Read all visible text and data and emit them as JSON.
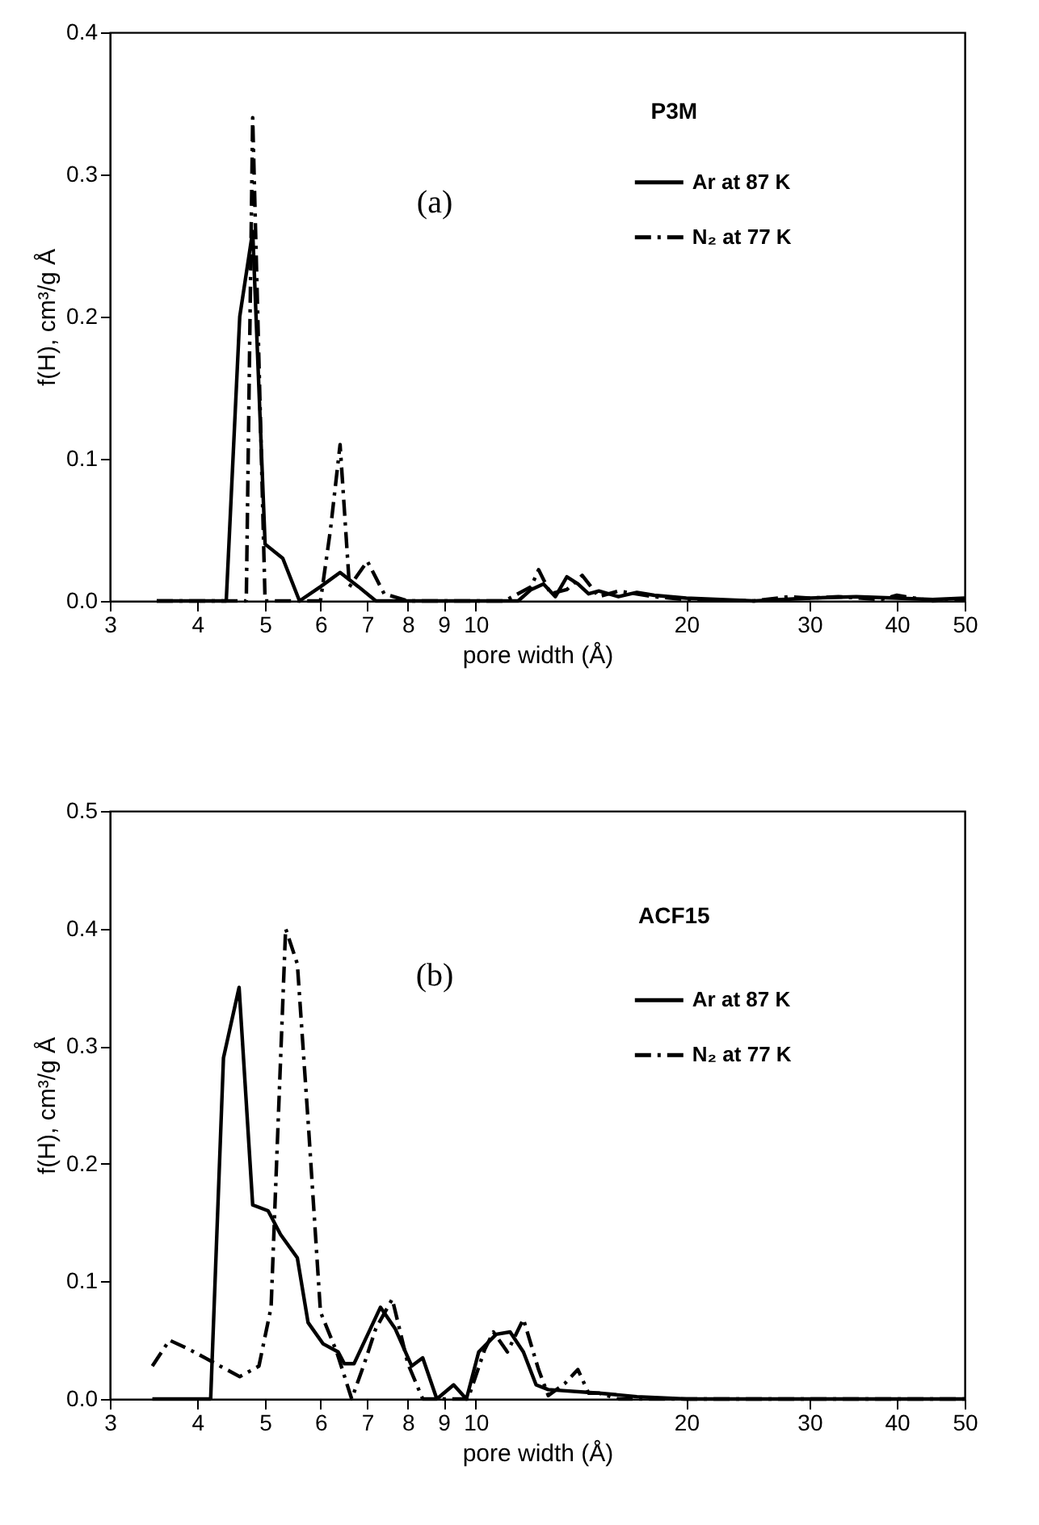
{
  "chart_data": [
    {
      "type": "line",
      "xlabel": "pore width (Å)",
      "ylabel": "f(H), cm³/g Å",
      "annotations": [
        "P3M",
        "(a)"
      ],
      "log": "x",
      "xlim": [
        3,
        50
      ],
      "ylim": [
        0,
        0.4
      ],
      "xticks": [
        3,
        4,
        5,
        6,
        7,
        8,
        9,
        10,
        20,
        30,
        40,
        50
      ],
      "yticks": [
        {
          "value": 0,
          "label": "0.0"
        },
        {
          "value": 0.1,
          "label": "0.1"
        },
        {
          "value": 0.2,
          "label": "0.2"
        },
        {
          "value": 0.3,
          "label": "0.3"
        },
        {
          "value": 0.4,
          "label": "0.4"
        }
      ],
      "legend": "top right",
      "grid": false,
      "marker": "none",
      "series": [
        {
          "name": "Ar at 87 K",
          "color": "#000000",
          "line_style": "solid",
          "x": [
            3.5,
            4.0,
            4.4,
            4.6,
            4.8,
            5.0,
            5.3,
            5.6,
            6.0,
            6.4,
            6.8,
            7.2,
            8,
            10,
            11.5,
            12,
            12.5,
            13,
            13.5,
            14,
            14.5,
            15,
            16,
            17,
            18,
            20,
            25,
            30,
            35,
            40,
            45,
            50
          ],
          "values": [
            0,
            0,
            0,
            0.2,
            0.26,
            0.04,
            0.03,
            0,
            0.01,
            0.02,
            0.01,
            0,
            0,
            0,
            0,
            0.008,
            0.012,
            0.003,
            0.017,
            0.012,
            0.005,
            0.007,
            0.003,
            0.006,
            0.004,
            0.002,
            0,
            0.002,
            0.003,
            0.002,
            0.001,
            0.002
          ]
        },
        {
          "name": "N₂ at 77 K",
          "color": "#000000",
          "line_style": "dashdot",
          "x": [
            3.5,
            4.5,
            4.7,
            4.8,
            5.0,
            6.0,
            6.2,
            6.4,
            6.6,
            7.0,
            7.4,
            8,
            11,
            12,
            12.3,
            12.8,
            13.5,
            14.2,
            15,
            16,
            18,
            20,
            25,
            28,
            30,
            33,
            38,
            40,
            45,
            50
          ],
          "values": [
            0,
            0,
            0,
            0.34,
            0,
            0,
            0.05,
            0.11,
            0.01,
            0.028,
            0.005,
            0,
            0,
            0.01,
            0.022,
            0.005,
            0.008,
            0.018,
            0.003,
            0.007,
            0.003,
            0.001,
            0,
            0.003,
            0.002,
            0.003,
            0.001,
            0.004,
            0,
            0.001
          ]
        }
      ]
    },
    {
      "type": "line",
      "xlabel": "pore width (Å)",
      "ylabel": "f(H), cm³/g Å",
      "annotations": [
        "ACF15",
        "(b)"
      ],
      "log": "x",
      "xlim": [
        3,
        50
      ],
      "ylim": [
        0,
        0.5
      ],
      "xticks": [
        3,
        4,
        5,
        6,
        7,
        8,
        9,
        10,
        20,
        30,
        40,
        50
      ],
      "yticks": [
        {
          "value": 0,
          "label": "0.0"
        },
        {
          "value": 0.1,
          "label": "0.1"
        },
        {
          "value": 0.2,
          "label": "0.2"
        },
        {
          "value": 0.3,
          "label": "0.3"
        },
        {
          "value": 0.4,
          "label": "0.4"
        },
        {
          "value": 0.5,
          "label": "0.5"
        }
      ],
      "legend": "top right",
      "grid": false,
      "marker": "none",
      "series": [
        {
          "name": "Ar at 87 K",
          "color": "#000000",
          "line_style": "solid",
          "x": [
            3.45,
            4.18,
            4.36,
            4.59,
            4.8,
            5.05,
            5.26,
            5.56,
            5.76,
            6.05,
            6.36,
            6.49,
            6.7,
            7.31,
            7.67,
            8.1,
            8.4,
            8.8,
            9.3,
            9.7,
            10.1,
            10.7,
            11.2,
            11.7,
            12.2,
            12.7,
            15,
            17,
            20,
            30,
            40,
            50
          ],
          "values": [
            0,
            0,
            0.29,
            0.35,
            0.165,
            0.16,
            0.14,
            0.12,
            0.065,
            0.047,
            0.04,
            0.03,
            0.03,
            0.078,
            0.06,
            0.028,
            0.035,
            0,
            0.012,
            0,
            0.04,
            0.055,
            0.057,
            0.04,
            0.012,
            0.008,
            0.005,
            0.002,
            0,
            0,
            0,
            0
          ]
        },
        {
          "name": "N₂ at 77 K",
          "color": "#000000",
          "line_style": "dashdot",
          "x": [
            3.45,
            3.65,
            3.9,
            4.6,
            4.9,
            5.1,
            5.2,
            5.35,
            5.56,
            5.77,
            6.0,
            6.33,
            6.65,
            6.93,
            7.2,
            7.6,
            8.0,
            8.4,
            9.75,
            10.3,
            10.6,
            11.1,
            11.7,
            12.3,
            12.7,
            13.4,
            14.0,
            14.5,
            15,
            16,
            20,
            30,
            40,
            50
          ],
          "values": [
            0.028,
            0.05,
            0.042,
            0.019,
            0.028,
            0.078,
            0.21,
            0.4,
            0.37,
            0.23,
            0.074,
            0.04,
            0,
            0.03,
            0.06,
            0.085,
            0.03,
            0,
            0,
            0.042,
            0.057,
            0.04,
            0.068,
            0.025,
            0.003,
            0.013,
            0.025,
            0.005,
            0.005,
            0,
            0,
            0,
            0,
            0
          ]
        }
      ]
    }
  ]
}
